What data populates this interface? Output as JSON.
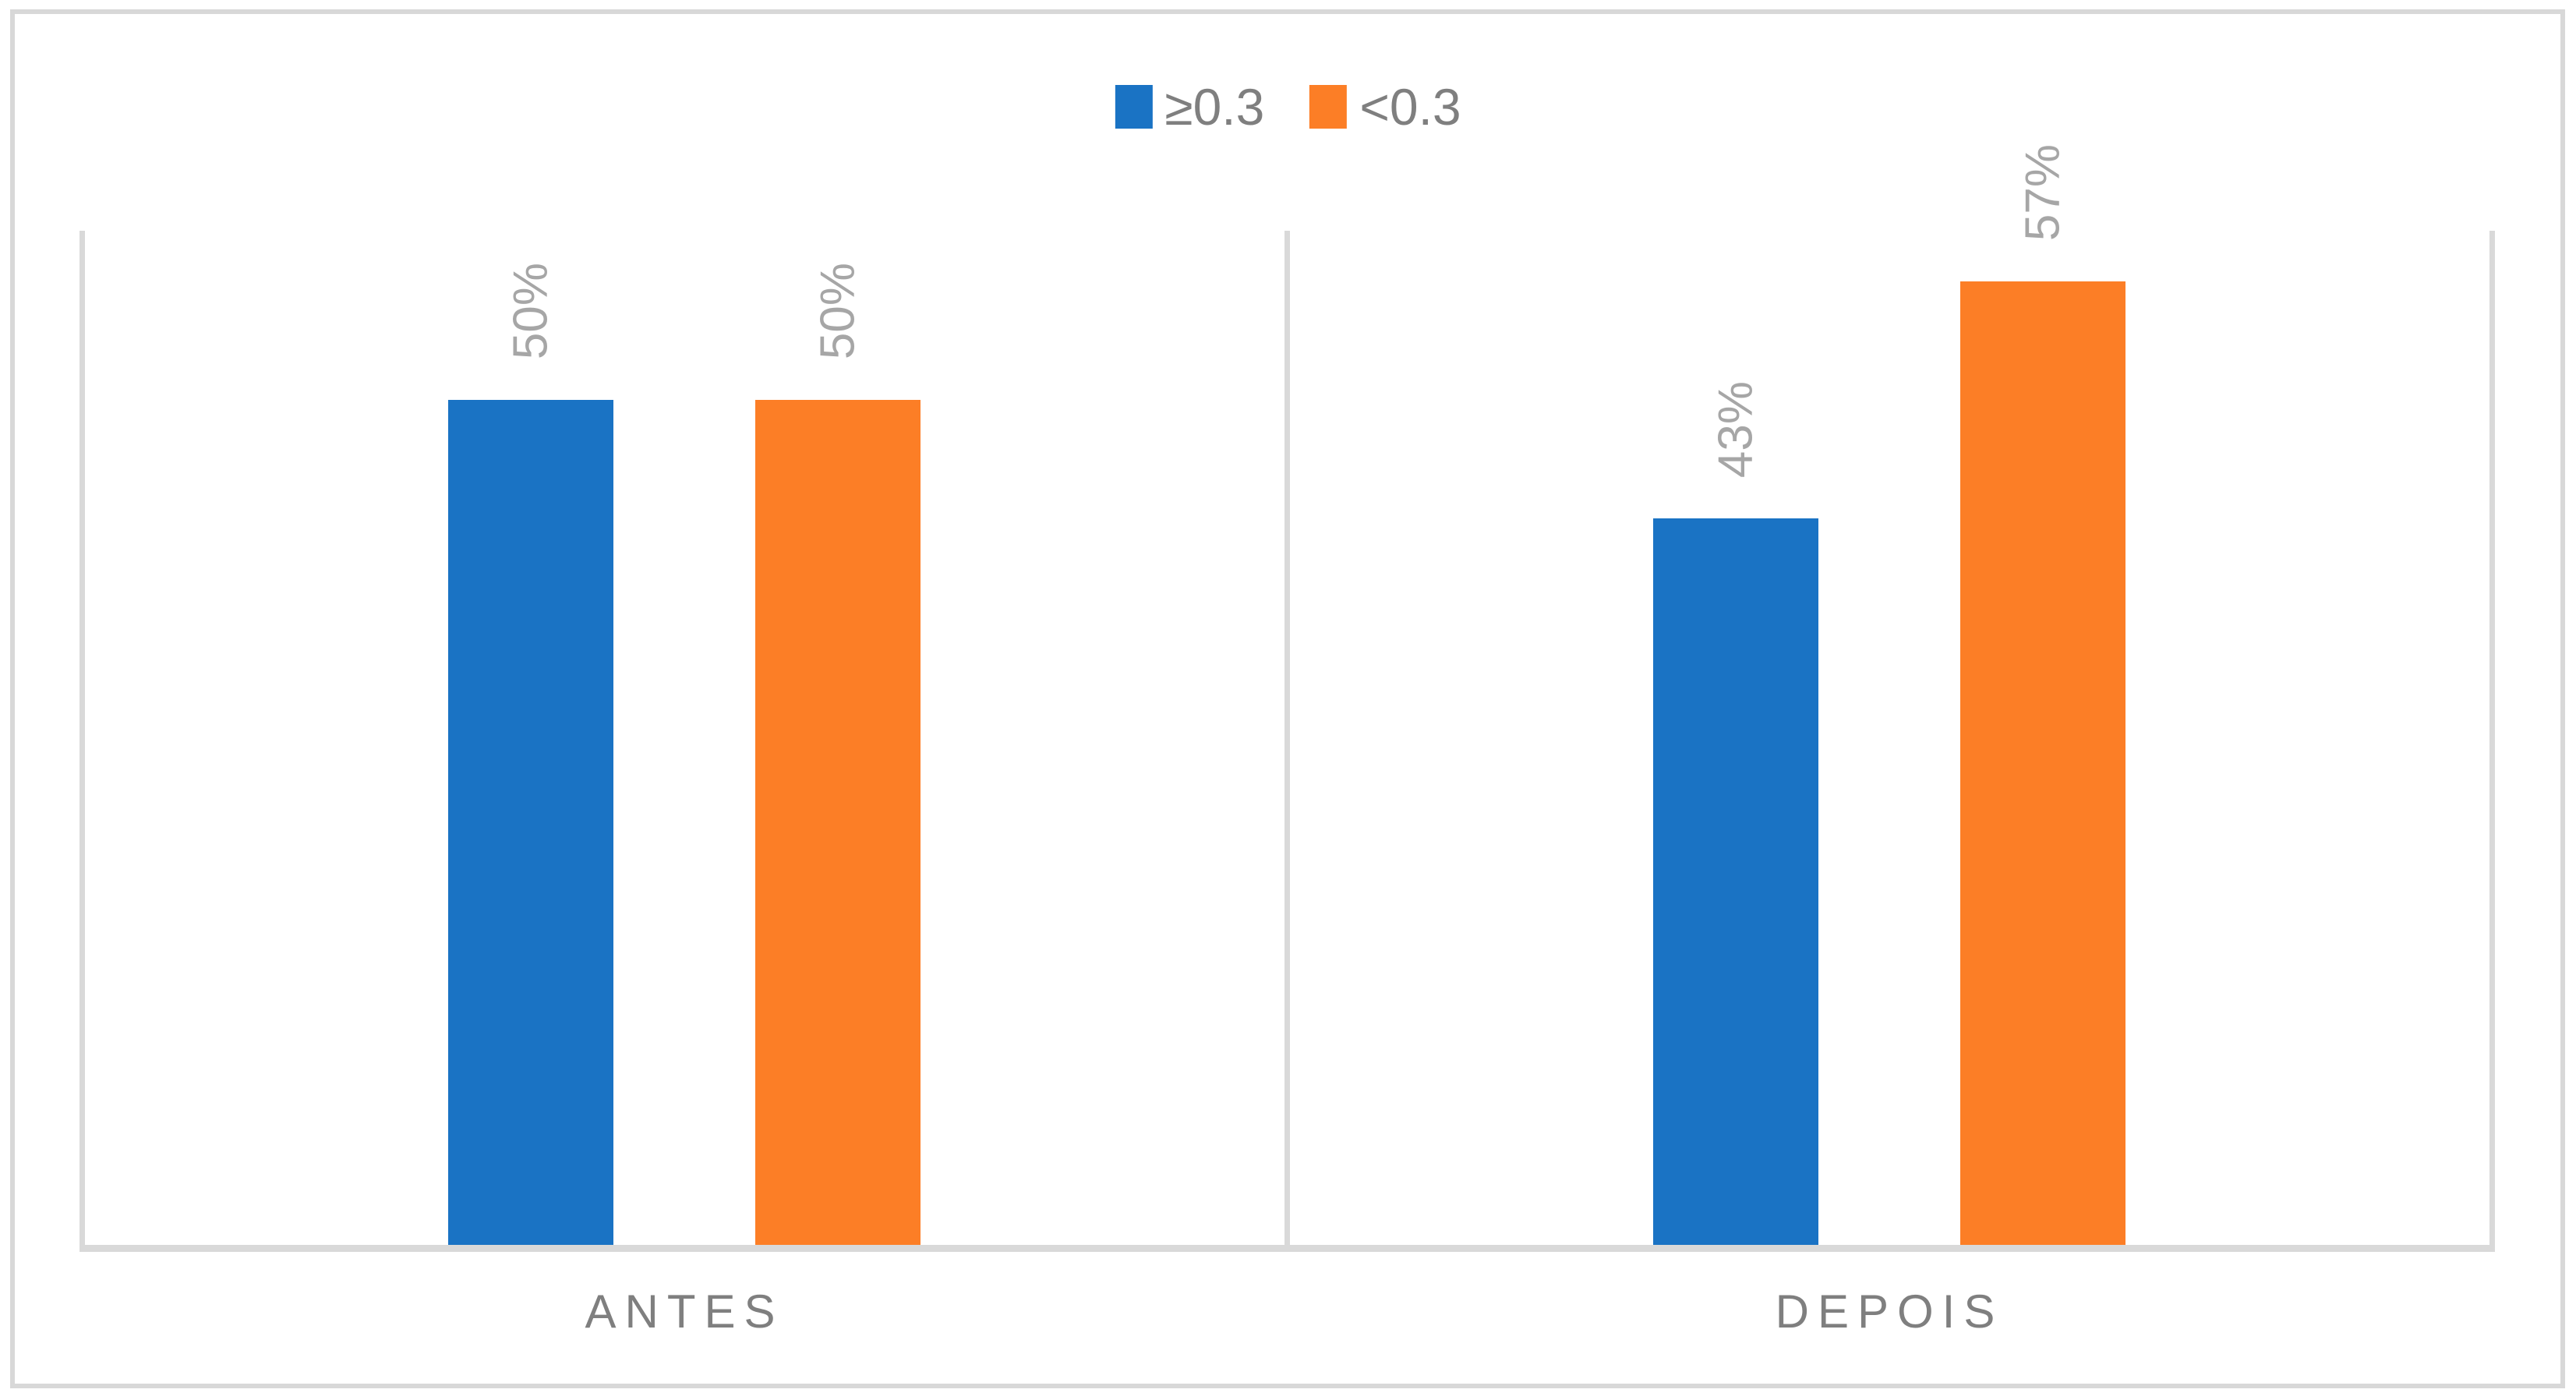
{
  "chart_data": {
    "type": "bar",
    "title": "",
    "xlabel": "",
    "ylabel": "",
    "categories": [
      "ANTES",
      "DEPOIS"
    ],
    "series": [
      {
        "name": "≥0.3",
        "key": "ge-03",
        "color": "#1A73C4",
        "values": [
          50,
          43
        ]
      },
      {
        "name": "<0.3",
        "key": "lt-03",
        "color": "#FC7E26",
        "values": [
          50,
          57
        ]
      }
    ],
    "data_labels": [
      "50%",
      "50%",
      "43%",
      "57%"
    ],
    "value_suffix": "%",
    "ylim": [
      0,
      60
    ],
    "y_axis_visible": false,
    "grid": "vertical category separators only, no horizontal gridlines",
    "legend_position": "top-center",
    "data_label_rotation_deg": -90,
    "colors": {
      "series_blue": "#1A73C4",
      "series_orange": "#FC7E26",
      "axis_line": "#D9D9D9",
      "frame_border": "#D8D8D8",
      "legend_text": "#7F7F7F",
      "category_text": "#7F7F7F",
      "data_label_text": "#A6A6A6",
      "background": "#FFFFFF"
    }
  }
}
